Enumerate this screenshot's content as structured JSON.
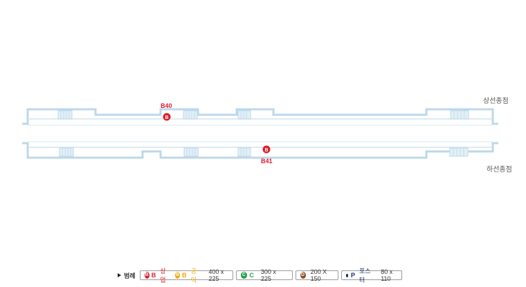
{
  "labels": {
    "upbound": "상선종점",
    "downbound": "하선종점"
  },
  "markers": [
    {
      "id": "B40",
      "letter": "B"
    },
    {
      "id": "B41",
      "letter": "B"
    }
  ],
  "legend": {
    "title": "범례",
    "items": [
      {
        "letter": "B",
        "code": "B",
        "sub": "상업",
        "letter2": "B",
        "code2": "B",
        "sub2": "공익",
        "size": "400 x 225"
      },
      {
        "letter": "C",
        "code": "C",
        "size": "300 x 225"
      },
      {
        "letter": "D",
        "size": "200 X 150"
      },
      {
        "code": "P",
        "sub": "포스터",
        "size": "80 x 110"
      }
    ]
  },
  "colors": {
    "wall": "#bcd8ea",
    "marker": "#d81e2c",
    "public": "#f2a900",
    "c": "#23a14a",
    "d": "#8a4b24",
    "poster": "#1c2a6e"
  }
}
